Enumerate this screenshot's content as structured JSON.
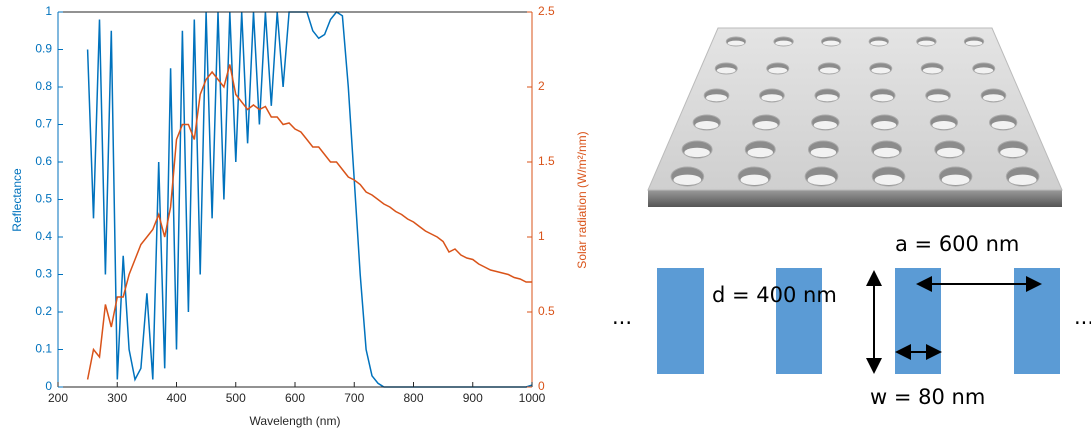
{
  "chart_data": {
    "type": "line",
    "xlabel": "Wavelength (nm)",
    "ylabel": "Reflectance",
    "y2label": "Solar radiation (W/m²/nm)",
    "x": [
      250,
      260,
      270,
      280,
      290,
      300,
      310,
      320,
      330,
      340,
      350,
      360,
      370,
      380,
      390,
      400,
      410,
      420,
      430,
      440,
      450,
      460,
      470,
      480,
      490,
      500,
      510,
      520,
      530,
      540,
      550,
      560,
      570,
      580,
      590,
      600,
      610,
      620,
      630,
      640,
      650,
      660,
      670,
      680,
      690,
      700,
      710,
      720,
      730,
      740,
      750,
      760,
      770,
      780,
      790,
      800,
      810,
      820,
      830,
      840,
      850,
      860,
      870,
      880,
      890,
      900,
      910,
      920,
      930,
      940,
      950,
      960,
      970,
      980,
      990,
      1000
    ],
    "series": [
      {
        "name": "Reflectance",
        "color": "#0072bd",
        "axis": "y",
        "values": [
          0.9,
          0.45,
          0.98,
          0.3,
          0.95,
          0.02,
          0.35,
          0.1,
          0.02,
          0.05,
          0.25,
          0.02,
          0.6,
          0.05,
          0.85,
          0.1,
          0.95,
          0.2,
          0.98,
          0.3,
          1,
          0.45,
          1,
          0.5,
          1,
          0.6,
          1,
          0.65,
          1,
          0.7,
          1,
          0.75,
          1,
          0.8,
          1,
          1,
          1,
          1,
          0.95,
          0.93,
          0.94,
          0.98,
          1,
          0.99,
          0.8,
          0.55,
          0.3,
          0.1,
          0.03,
          0.01,
          0,
          0,
          0,
          0,
          0,
          0,
          0,
          0,
          0,
          0,
          0,
          0,
          0,
          0,
          0,
          0,
          0,
          0,
          0,
          0,
          0,
          0,
          0,
          0,
          0,
          0.005
        ]
      },
      {
        "name": "Solar radiation",
        "color": "#d95319",
        "axis": "y2",
        "values": [
          0.05,
          0.25,
          0.2,
          0.55,
          0.4,
          0.6,
          0.6,
          0.75,
          0.85,
          0.95,
          1,
          1.05,
          1.15,
          1,
          1.2,
          1.65,
          1.75,
          1.75,
          1.65,
          1.95,
          2.05,
          2.1,
          2.05,
          2,
          2.15,
          1.95,
          1.9,
          1.85,
          1.88,
          1.85,
          1.87,
          1.8,
          1.8,
          1.75,
          1.76,
          1.72,
          1.7,
          1.65,
          1.6,
          1.6,
          1.55,
          1.5,
          1.5,
          1.45,
          1.4,
          1.38,
          1.35,
          1.3,
          1.28,
          1.25,
          1.22,
          1.2,
          1.17,
          1.15,
          1.12,
          1.1,
          1.07,
          1.04,
          1.02,
          1,
          0.97,
          0.9,
          0.92,
          0.88,
          0.86,
          0.85,
          0.82,
          0.8,
          0.78,
          0.77,
          0.76,
          0.75,
          0.73,
          0.72,
          0.7,
          0.7
        ]
      }
    ],
    "xlim": [
      200,
      1000
    ],
    "xticks": [
      200,
      300,
      400,
      500,
      600,
      700,
      800,
      900,
      1000
    ],
    "ylim": [
      0,
      1
    ],
    "yticks": [
      0,
      0.1,
      0.2,
      0.3,
      0.4,
      0.5,
      0.6,
      0.7,
      0.8,
      0.9,
      1
    ],
    "y2lim": [
      0,
      2.5
    ],
    "y2ticks": [
      0,
      0.5,
      1,
      1.5,
      2,
      2.5
    ]
  },
  "diagram": {
    "period": "a = 600 nm",
    "depth": "d = 400 nm",
    "width": "w = 80 nm",
    "ellipsis_left": "...",
    "ellipsis_right": "..."
  }
}
